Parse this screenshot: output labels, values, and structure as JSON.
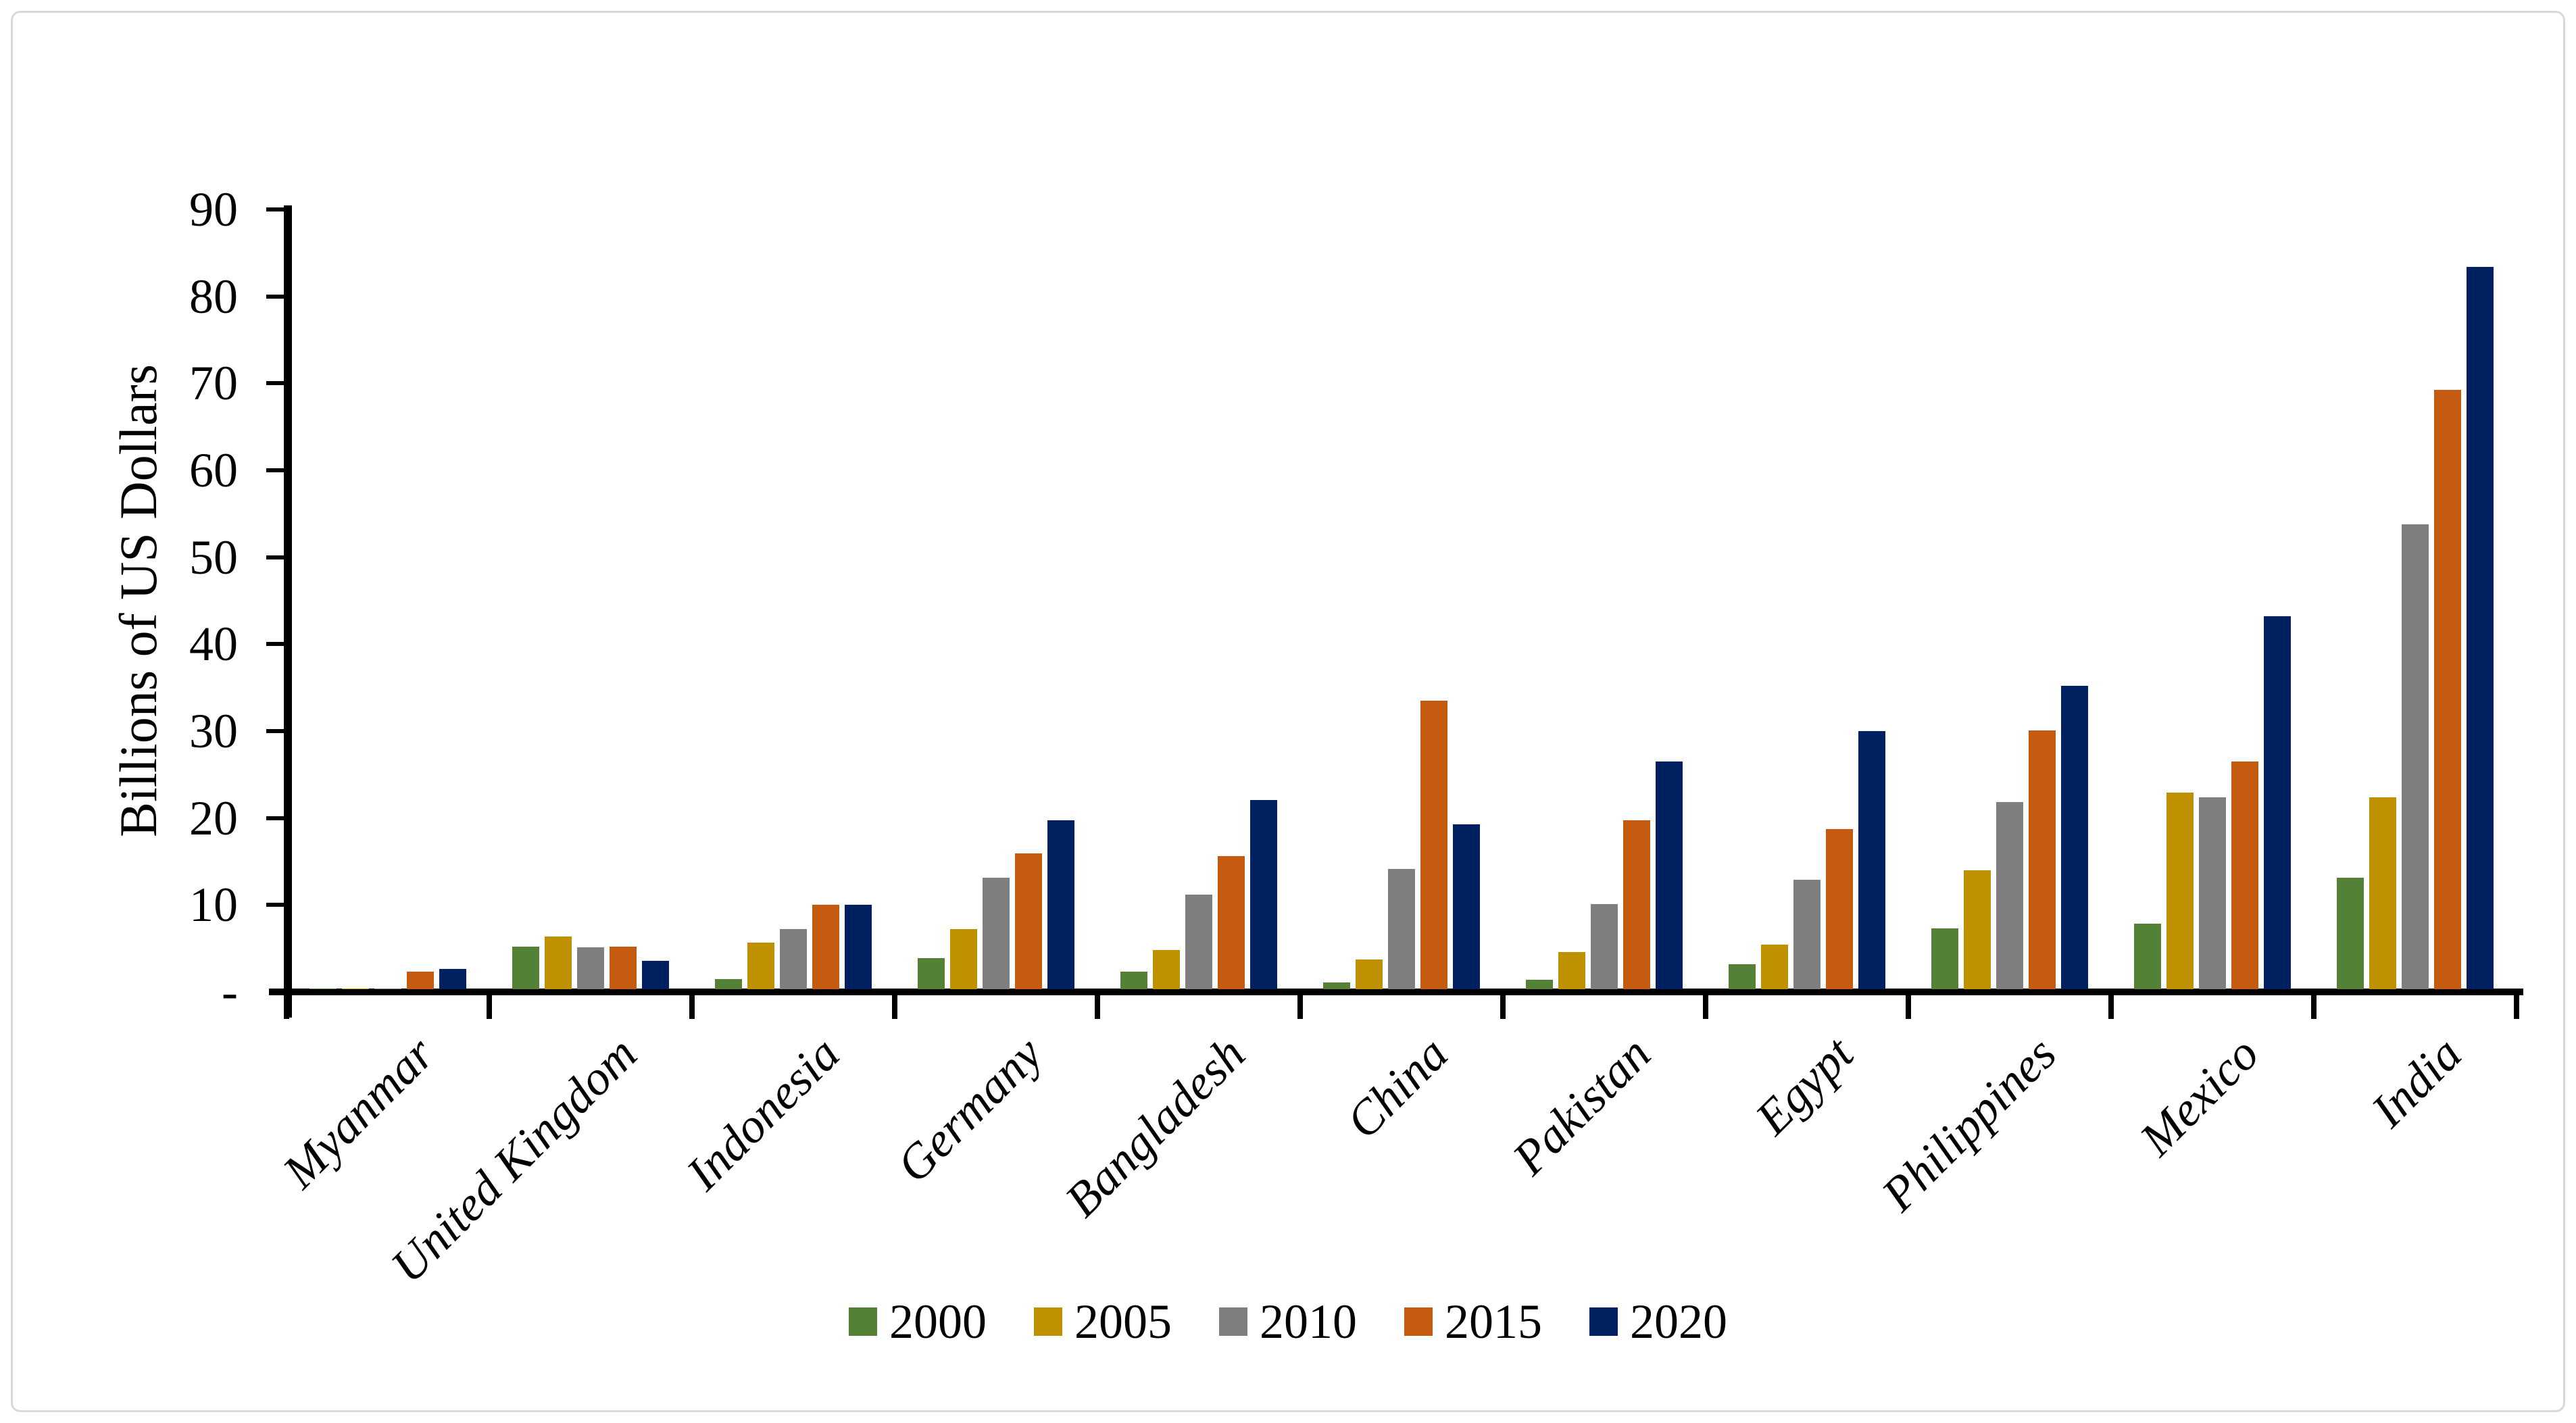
{
  "chart_data": {
    "type": "bar",
    "title": "",
    "xlabel": "",
    "ylabel": "Billions of US Dollars",
    "ylim": [
      0,
      90
    ],
    "ytick_step": 10,
    "ytick_labels": [
      "-",
      "10",
      "20",
      "30",
      "40",
      "50",
      "60",
      "70",
      "80",
      "90"
    ],
    "grid": false,
    "legend_position": "bottom",
    "categories": [
      "Myanmar",
      "United Kingdom",
      "Indonesia",
      "Germany",
      "Bangladesh",
      "China",
      "Pakistan",
      "Egypt",
      "Philippines",
      "Mexico",
      "India"
    ],
    "series": [
      {
        "name": "2000",
        "color": "#538135",
        "values": [
          0.1,
          4.9,
          1.2,
          3.6,
          2.0,
          0.8,
          1.1,
          2.9,
          7.0,
          7.5,
          12.8
        ]
      },
      {
        "name": "2005",
        "color": "#BF9000",
        "values": [
          0.1,
          6.1,
          5.4,
          6.9,
          4.5,
          3.4,
          4.3,
          5.1,
          13.7,
          22.6,
          22.1
        ]
      },
      {
        "name": "2010",
        "color": "#7F7F7F",
        "values": [
          0.1,
          4.8,
          6.9,
          12.8,
          10.9,
          13.8,
          9.8,
          12.6,
          21.5,
          22.1,
          53.5
        ]
      },
      {
        "name": "2015",
        "color": "#C55A11",
        "values": [
          2.0,
          4.9,
          9.7,
          15.6,
          15.3,
          33.2,
          19.4,
          18.4,
          29.8,
          26.2,
          68.9
        ]
      },
      {
        "name": "2020",
        "color": "#002060",
        "values": [
          2.3,
          3.3,
          9.7,
          19.4,
          21.8,
          19.0,
          26.2,
          29.7,
          34.9,
          42.9,
          83.1
        ]
      }
    ],
    "axis_color": "#000000",
    "frame_border_color": "#D9D9D9",
    "background_color": "#FFFFFF"
  }
}
